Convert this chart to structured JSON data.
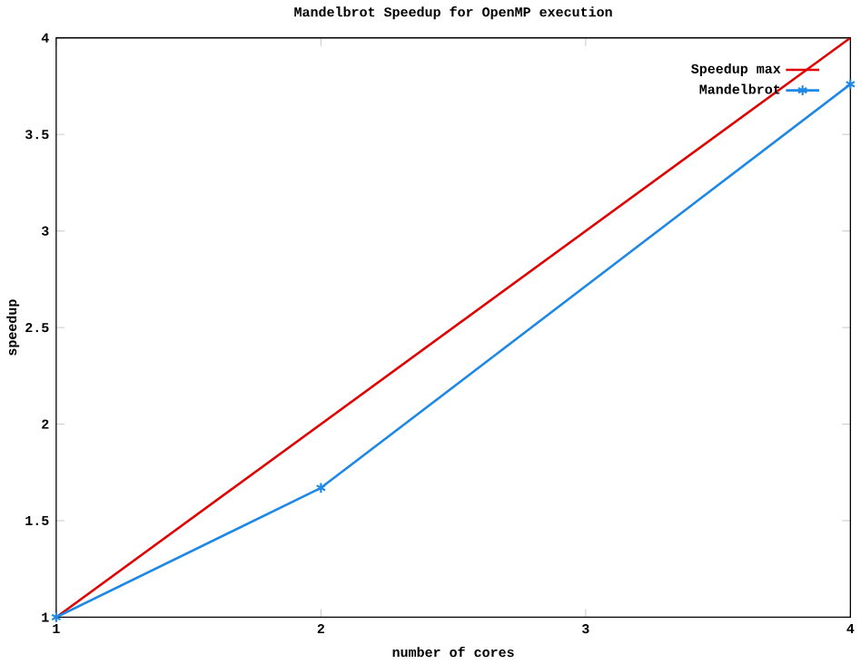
{
  "chart_data": {
    "type": "line",
    "title": "Mandelbrot Speedup for OpenMP execution",
    "xlabel": "number of cores",
    "ylabel": "speedup",
    "xlim": [
      1,
      4
    ],
    "xticks": [
      1,
      2,
      3,
      4
    ],
    "ylim": [
      1,
      4
    ],
    "yticks": [
      1,
      1.5,
      2,
      2.5,
      3,
      3.5,
      4
    ],
    "grid": false,
    "legend": "top right",
    "line_style": "solid",
    "series": [
      {
        "name": "Speedup max",
        "color": "#e00000",
        "x": [
          1,
          4
        ],
        "values": [
          1,
          4
        ],
        "marker": "none"
      },
      {
        "name": "Mandelbrot",
        "color": "#1e88e5",
        "x": [
          1,
          2,
          4
        ],
        "values": [
          1,
          1.67,
          3.76
        ],
        "marker": "cross"
      }
    ]
  }
}
